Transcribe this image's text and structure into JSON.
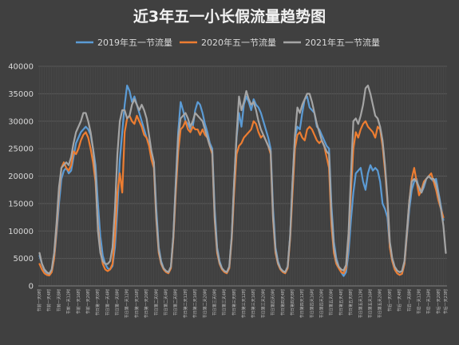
{
  "chart_data": {
    "type": "line",
    "title": "近3年五一小长假流量趋势图",
    "xlabel": "",
    "ylabel": "",
    "ylim": [
      0,
      40000
    ],
    "yticks": [
      0,
      5000,
      10000,
      15000,
      20000,
      25000,
      30000,
      35000,
      40000
    ],
    "grid": true,
    "legend": "top",
    "hours_per_day": 24,
    "categories": [
      "节前一天0时",
      "节前一天4时",
      "节前一天8时",
      "节前一天12时",
      "节前一天16时",
      "节前一天20时",
      "节日第一天0时",
      "节日第一天4时",
      "节日第一天8时",
      "节日第一天12时",
      "节日第一天16时",
      "节日第一天20时",
      "节日第二天0时",
      "节日第二天4时",
      "节日第二天8时",
      "节日第二天12时",
      "节日第二天16时",
      "节日第二天20时",
      "节日第三天0时",
      "节日第三天4时",
      "节日第三天8时",
      "节日第三天12时",
      "节日第三天16时",
      "节日第三天20时",
      "节日第四天0时",
      "节日第四天4时",
      "节日第四天8时",
      "节日第四天12时",
      "节日第四天16时",
      "节日第四天20时",
      "节日第五天0时",
      "节日第五天4时",
      "节日第五天8时",
      "节日第五天12时",
      "节日第五天16时",
      "节日第五天20时",
      "节后一天0时",
      "节后一天4时",
      "节后一天8时",
      "节后一天12时",
      "节后一天16时",
      "节后一天20时",
      "节后一天23时"
    ],
    "series": [
      {
        "name": "2019年五一节流量",
        "color": "#5b9bd5",
        "days": [
          [
            5500,
            4000,
            2800,
            2300,
            2100,
            2600,
            5000,
            9500,
            15000,
            19500,
            21000,
            21500,
            20500,
            21000,
            23500,
            26000,
            27000,
            28000,
            28500,
            29000,
            28500,
            27500,
            25000,
            22000
          ],
          [
            15000,
            9000,
            5500,
            4000,
            3200,
            3000,
            3600,
            7000,
            14000,
            23000,
            28000,
            33000,
            36500,
            35500,
            33500,
            34500,
            33000,
            31500,
            30000,
            28500,
            27000,
            26000,
            24500,
            22500
          ],
          [
            14000,
            7000,
            4500,
            3200,
            2700,
            2500,
            3500,
            9000,
            19000,
            28000,
            33500,
            32000,
            30000,
            29500,
            28500,
            29000,
            32000,
            33500,
            33000,
            31500,
            29500,
            28000,
            26000,
            25000
          ],
          [
            14000,
            7000,
            4500,
            3200,
            2700,
            2500,
            3500,
            9000,
            19000,
            27000,
            31500,
            29000,
            33000,
            34500,
            33500,
            32000,
            34000,
            33000,
            32500,
            31500,
            30000,
            28500,
            27000,
            25000
          ],
          [
            14000,
            7000,
            4500,
            3200,
            2700,
            2500,
            3500,
            9000,
            19000,
            27000,
            29000,
            28500,
            31500,
            34000,
            34500,
            32500,
            32000,
            31500,
            29000,
            28500,
            27500,
            26500,
            25500,
            25000
          ],
          [
            14500,
            8000,
            5000,
            3500,
            2500,
            1800,
            2500,
            6000,
            12000,
            17000,
            20500,
            21000,
            21500,
            19000,
            17500,
            20500,
            22000,
            21000,
            21500,
            21000,
            19000,
            15000,
            14000,
            12500
          ],
          [
            7000,
            4500,
            3000,
            2300,
            2000,
            2200,
            4000,
            9000,
            14000,
            17500,
            19000,
            19500,
            17500,
            17000,
            18000,
            19500,
            20000,
            19500,
            19000,
            19500,
            17000,
            14500,
            12000
          ]
        ]
      },
      {
        "name": "2020年五一节流量",
        "color": "#ed7d31",
        "days": [
          [
            4000,
            3000,
            2300,
            2000,
            1900,
            2500,
            5000,
            10500,
            17000,
            21500,
            22500,
            21500,
            21000,
            22000,
            24500,
            24000,
            25000,
            26500,
            27500,
            28000,
            27000,
            25000,
            22500,
            19000
          ],
          [
            11000,
            6500,
            4000,
            3000,
            2700,
            3000,
            4000,
            9000,
            17000,
            20500,
            17000,
            28000,
            30500,
            31000,
            30000,
            29500,
            31000,
            30000,
            29000,
            27500,
            27000,
            25500,
            23000,
            21500
          ],
          [
            12000,
            6000,
            4000,
            3000,
            2500,
            2300,
            3200,
            8500,
            17000,
            24500,
            28500,
            29000,
            30000,
            28500,
            28000,
            29000,
            28500,
            28500,
            27500,
            28500,
            27500,
            27000,
            25500,
            24000
          ],
          [
            12000,
            6000,
            4000,
            3000,
            2500,
            2300,
            3200,
            8500,
            17000,
            24000,
            25500,
            26000,
            27000,
            27500,
            28000,
            28500,
            30000,
            29500,
            28000,
            27000,
            27500,
            26500,
            25500,
            24000
          ],
          [
            12000,
            6000,
            4000,
            3000,
            2500,
            2300,
            3200,
            8500,
            17000,
            25000,
            27500,
            28000,
            27000,
            26500,
            28500,
            29000,
            28500,
            27500,
            26500,
            26000,
            26500,
            25500,
            23500,
            21500
          ],
          [
            11000,
            6000,
            4000,
            3200,
            2500,
            2300,
            3200,
            8500,
            17000,
            25000,
            28000,
            27000,
            28500,
            29500,
            30000,
            29000,
            28500,
            28000,
            27000,
            29000,
            28500,
            25500,
            21000,
            15500
          ],
          [
            7000,
            4500,
            3000,
            2300,
            2000,
            2200,
            4000,
            9500,
            15500,
            19500,
            21500,
            19000,
            16500,
            17500,
            19000,
            19500,
            20000,
            20500,
            19000,
            17500,
            15500,
            14000,
            12500
          ]
        ]
      },
      {
        "name": "2021年五一节流量",
        "color": "#a5a5a5",
        "days": [
          [
            6000,
            4000,
            3000,
            2500,
            2200,
            3000,
            6000,
            11500,
            18000,
            21500,
            22000,
            22500,
            22000,
            23500,
            26000,
            28000,
            29000,
            30000,
            31500,
            31500,
            30000,
            28000,
            25000,
            20500
          ],
          [
            10000,
            6000,
            4500,
            4000,
            4000,
            4500,
            7000,
            14000,
            24000,
            30000,
            32000,
            32000,
            30500,
            31000,
            33000,
            34000,
            33000,
            32000,
            33000,
            32000,
            30500,
            27500,
            24500,
            22500
          ],
          [
            12500,
            6500,
            4200,
            3200,
            2700,
            2500,
            3500,
            9000,
            18500,
            27000,
            30500,
            31000,
            31500,
            30500,
            29000,
            30000,
            31500,
            31000,
            30500,
            30000,
            28500,
            27000,
            25500,
            24500
          ],
          [
            12500,
            6500,
            4200,
            3200,
            2700,
            2500,
            3500,
            9000,
            19000,
            27500,
            34500,
            32000,
            33500,
            35500,
            34000,
            33000,
            33500,
            32000,
            30000,
            28500,
            27500,
            26500,
            25500,
            24500
          ],
          [
            12500,
            6500,
            4200,
            3200,
            2700,
            2500,
            3500,
            9000,
            19000,
            27500,
            32500,
            31500,
            33000,
            34000,
            35000,
            35000,
            33500,
            31500,
            29500,
            28000,
            26500,
            25500,
            24500,
            24000
          ],
          [
            13000,
            7000,
            4500,
            3500,
            3000,
            2800,
            3800,
            9500,
            20000,
            30000,
            30500,
            29500,
            31000,
            33000,
            36000,
            36500,
            35000,
            33000,
            31000,
            30500,
            29000,
            26500,
            22000,
            16000
          ],
          [
            8000,
            5000,
            3500,
            2800,
            2500,
            2700,
            4500,
            10000,
            15500,
            19000,
            19500,
            19000,
            18000,
            17000,
            18500,
            19500,
            20000,
            19500,
            19500,
            18500,
            16500,
            14000,
            11000,
            6000
          ]
        ]
      }
    ]
  }
}
